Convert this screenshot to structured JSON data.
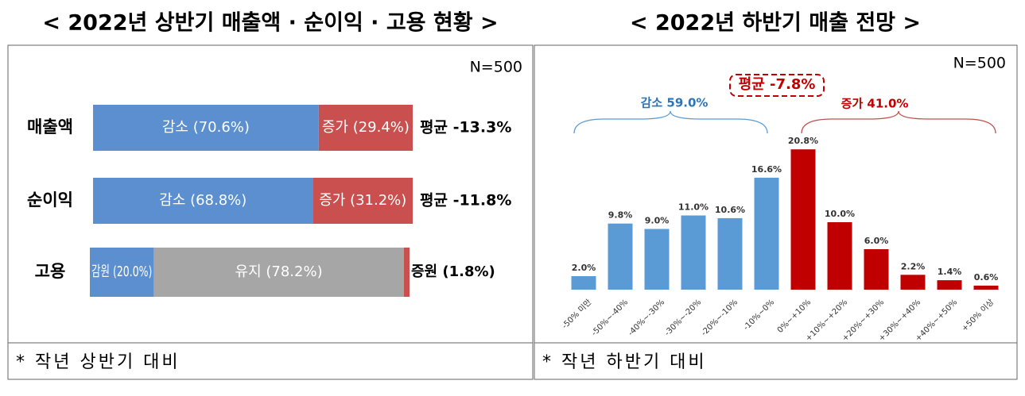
{
  "chart_data": [
    {
      "type": "stacked_bar_h",
      "title": "< 2022년 상반기 매출액 · 순이익 · 고용 현황 >",
      "note": "N=500",
      "footnote": "* 작년 상반기 대비",
      "xlim": [
        0,
        100
      ],
      "rows": [
        {
          "category": "매출액",
          "segments": [
            {
              "value": 70.6,
              "label": "감소 (70.6%)",
              "color": "#5b8fd0"
            },
            {
              "value": 29.4,
              "label": "증가 (29.4%)",
              "color": "#c9504f"
            }
          ],
          "average": {
            "value": -13.3,
            "label": "평균 -13.3%"
          }
        },
        {
          "category": "순이익",
          "segments": [
            {
              "value": 68.8,
              "label": "감소 (68.8%)",
              "color": "#5b8fd0"
            },
            {
              "value": 31.2,
              "label": "증가 (31.2%)",
              "color": "#c9504f"
            }
          ],
          "average": {
            "value": -11.8,
            "label": "평균 -11.8%"
          }
        },
        {
          "category": "고용",
          "segments": [
            {
              "value": 20.0,
              "label": "감원 (20.0%)",
              "color": "#5b8fd0"
            },
            {
              "value": 78.2,
              "label": "유지 (78.2%)",
              "color": "#a6a6a6"
            },
            {
              "value": 1.8,
              "label": "증원 (1.8%)",
              "color": "#c9504f"
            }
          ]
        }
      ]
    },
    {
      "type": "bar",
      "title": "< 2022년 하반기 매출 전망 >",
      "note": "N=500",
      "footnote": "* 작년 하반기 대비",
      "annotations": [
        {
          "text": "감소 59.0%",
          "color": "#2e75b6"
        },
        {
          "text": "증가 41.0%",
          "color": "#c00000"
        },
        {
          "text": "평균 -7.8%",
          "color": "#c00000"
        }
      ],
      "categories": [
        "-50% 미만",
        "-50%~-40%",
        "-40%~-30%",
        "-30%~-20%",
        "-20%~-10%",
        "-10%~0%",
        "0%~+10%",
        "+10%~+20%",
        "+20%~+30%",
        "+30%~+40%",
        "+40%~+50%",
        "+50% 이상"
      ],
      "values": [
        2.0,
        9.8,
        9.0,
        11.0,
        10.6,
        16.6,
        20.8,
        10.0,
        6.0,
        2.2,
        1.4,
        0.6
      ],
      "value_labels": [
        "2.0%",
        "9.8%",
        "9.0%",
        "11.0%",
        "10.6%",
        "16.6%",
        "20.8%",
        "10.0%",
        "6.0%",
        "2.2%",
        "1.4%",
        "0.6%"
      ],
      "colors": [
        "#5b9bd5",
        "#5b9bd5",
        "#5b9bd5",
        "#5b9bd5",
        "#5b9bd5",
        "#5b9bd5",
        "#c00000",
        "#c00000",
        "#c00000",
        "#c00000",
        "#c00000",
        "#c00000"
      ],
      "ylim": [
        0,
        22
      ]
    }
  ]
}
